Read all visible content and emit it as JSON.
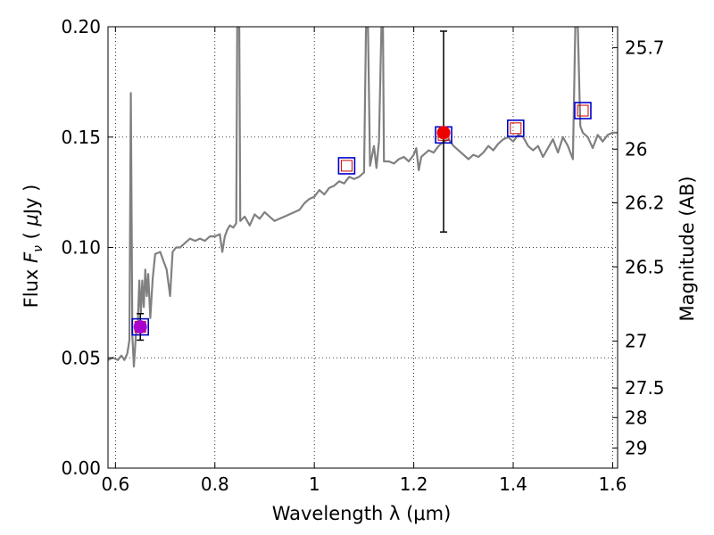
{
  "chart_data": {
    "type": "line",
    "xlabel": "Wavelength  λ (μm)",
    "ylabel": "Flux  F_ν  ( μJy )",
    "ylabel_parts": {
      "pre": "Flux ",
      "var": "F",
      "sub": "ν",
      "mid": " ( ",
      "mu": "μ",
      "post": "Jy )"
    },
    "y2label": "Magnitude (AB)",
    "xlim": [
      0.585,
      1.61
    ],
    "ylim": [
      0.0,
      0.2
    ],
    "grid": true,
    "x_ticks": [
      0.6,
      0.8,
      1.0,
      1.2,
      1.4,
      1.6
    ],
    "x_tick_labels": [
      "0.6",
      "0.8",
      "1",
      "1.2",
      "1.4",
      "1.6"
    ],
    "y_ticks": [
      0.0,
      0.05,
      0.1,
      0.15,
      0.2
    ],
    "y_tick_labels": [
      "0.00",
      "0.05",
      "0.10",
      "0.15",
      "0.20"
    ],
    "y2_ticks": [
      {
        "label": "25.7",
        "mag": 25.7
      },
      {
        "label": "26",
        "mag": 26.0
      },
      {
        "label": "26.2",
        "mag": 26.2
      },
      {
        "label": "26.5",
        "mag": 26.5
      },
      {
        "label": "27",
        "mag": 27.0
      },
      {
        "label": "27.5",
        "mag": 27.5
      },
      {
        "label": "28",
        "mag": 28.0
      },
      {
        "label": "29",
        "mag": 29.0
      }
    ],
    "spectrum": {
      "color": "#808080",
      "points": [
        [
          0.585,
          0.049
        ],
        [
          0.595,
          0.05
        ],
        [
          0.605,
          0.049
        ],
        [
          0.612,
          0.051
        ],
        [
          0.618,
          0.049
        ],
        [
          0.624,
          0.052
        ],
        [
          0.628,
          0.058
        ],
        [
          0.631,
          0.17
        ],
        [
          0.634,
          0.06
        ],
        [
          0.637,
          0.046
        ],
        [
          0.641,
          0.06
        ],
        [
          0.645,
          0.066
        ],
        [
          0.648,
          0.085
        ],
        [
          0.651,
          0.07
        ],
        [
          0.654,
          0.085
        ],
        [
          0.657,
          0.073
        ],
        [
          0.66,
          0.09
        ],
        [
          0.663,
          0.078
        ],
        [
          0.666,
          0.088
        ],
        [
          0.67,
          0.068
        ],
        [
          0.675,
          0.086
        ],
        [
          0.68,
          0.097
        ],
        [
          0.69,
          0.098
        ],
        [
          0.698,
          0.093
        ],
        [
          0.703,
          0.09
        ],
        [
          0.71,
          0.078
        ],
        [
          0.715,
          0.098
        ],
        [
          0.722,
          0.1
        ],
        [
          0.73,
          0.1
        ],
        [
          0.74,
          0.102
        ],
        [
          0.75,
          0.104
        ],
        [
          0.76,
          0.103
        ],
        [
          0.77,
          0.104
        ],
        [
          0.78,
          0.103
        ],
        [
          0.79,
          0.105
        ],
        [
          0.8,
          0.105
        ],
        [
          0.81,
          0.106
        ],
        [
          0.815,
          0.098
        ],
        [
          0.82,
          0.105
        ],
        [
          0.825,
          0.108
        ],
        [
          0.83,
          0.11
        ],
        [
          0.837,
          0.109
        ],
        [
          0.843,
          0.111
        ],
        [
          0.845,
          0.2
        ],
        [
          0.849,
          0.2
        ],
        [
          0.851,
          0.112
        ],
        [
          0.86,
          0.114
        ],
        [
          0.87,
          0.11
        ],
        [
          0.88,
          0.115
        ],
        [
          0.89,
          0.113
        ],
        [
          0.9,
          0.116
        ],
        [
          0.91,
          0.114
        ],
        [
          0.92,
          0.112
        ],
        [
          0.93,
          0.113
        ],
        [
          0.94,
          0.114
        ],
        [
          0.95,
          0.115
        ],
        [
          0.96,
          0.116
        ],
        [
          0.97,
          0.117
        ],
        [
          0.98,
          0.12
        ],
        [
          0.99,
          0.122
        ],
        [
          1.0,
          0.123
        ],
        [
          1.01,
          0.126
        ],
        [
          1.02,
          0.124
        ],
        [
          1.03,
          0.127
        ],
        [
          1.04,
          0.128
        ],
        [
          1.05,
          0.13
        ],
        [
          1.06,
          0.129
        ],
        [
          1.07,
          0.132
        ],
        [
          1.08,
          0.131
        ],
        [
          1.09,
          0.132
        ],
        [
          1.1,
          0.134
        ],
        [
          1.104,
          0.2
        ],
        [
          1.108,
          0.2
        ],
        [
          1.112,
          0.137
        ],
        [
          1.12,
          0.146
        ],
        [
          1.125,
          0.136
        ],
        [
          1.13,
          0.148
        ],
        [
          1.135,
          0.2
        ],
        [
          1.138,
          0.2
        ],
        [
          1.14,
          0.139
        ],
        [
          1.15,
          0.139
        ],
        [
          1.16,
          0.138
        ],
        [
          1.17,
          0.14
        ],
        [
          1.18,
          0.141
        ],
        [
          1.19,
          0.139
        ],
        [
          1.2,
          0.142
        ],
        [
          1.205,
          0.145
        ],
        [
          1.21,
          0.135
        ],
        [
          1.215,
          0.141
        ],
        [
          1.22,
          0.142
        ],
        [
          1.23,
          0.144
        ],
        [
          1.24,
          0.143
        ],
        [
          1.25,
          0.146
        ],
        [
          1.26,
          0.148
        ],
        [
          1.27,
          0.149
        ],
        [
          1.28,
          0.146
        ],
        [
          1.29,
          0.144
        ],
        [
          1.3,
          0.142
        ],
        [
          1.31,
          0.14
        ],
        [
          1.32,
          0.142
        ],
        [
          1.33,
          0.141
        ],
        [
          1.34,
          0.143
        ],
        [
          1.35,
          0.146
        ],
        [
          1.36,
          0.144
        ],
        [
          1.37,
          0.147
        ],
        [
          1.38,
          0.149
        ],
        [
          1.39,
          0.15
        ],
        [
          1.4,
          0.148
        ],
        [
          1.41,
          0.151
        ],
        [
          1.42,
          0.15
        ],
        [
          1.43,
          0.146
        ],
        [
          1.44,
          0.144
        ],
        [
          1.45,
          0.146
        ],
        [
          1.46,
          0.141
        ],
        [
          1.47,
          0.145
        ],
        [
          1.48,
          0.149
        ],
        [
          1.49,
          0.143
        ],
        [
          1.5,
          0.15
        ],
        [
          1.51,
          0.146
        ],
        [
          1.52,
          0.14
        ],
        [
          1.525,
          0.2
        ],
        [
          1.53,
          0.2
        ],
        [
          1.535,
          0.155
        ],
        [
          1.54,
          0.152
        ],
        [
          1.55,
          0.15
        ],
        [
          1.56,
          0.145
        ],
        [
          1.57,
          0.151
        ],
        [
          1.58,
          0.148
        ],
        [
          1.59,
          0.151
        ],
        [
          1.6,
          0.152
        ],
        [
          1.61,
          0.152
        ]
      ]
    },
    "model_squares": [
      {
        "x": 0.65,
        "y": 0.064
      },
      {
        "x": 1.065,
        "y": 0.137
      },
      {
        "x": 1.26,
        "y": 0.151
      },
      {
        "x": 1.405,
        "y": 0.154
      },
      {
        "x": 1.54,
        "y": 0.162
      }
    ],
    "model_square_colors": {
      "outer": "#0000cc",
      "inner": "#cc0000"
    },
    "observed_points": [
      {
        "x": 0.65,
        "y": 0.064,
        "yerr_low": 0.058,
        "yerr_high": 0.07,
        "color": "#aa00cc"
      },
      {
        "x": 1.26,
        "y": 0.152,
        "yerr_low": 0.107,
        "yerr_high": 0.198,
        "color": "#ee0000"
      }
    ]
  }
}
